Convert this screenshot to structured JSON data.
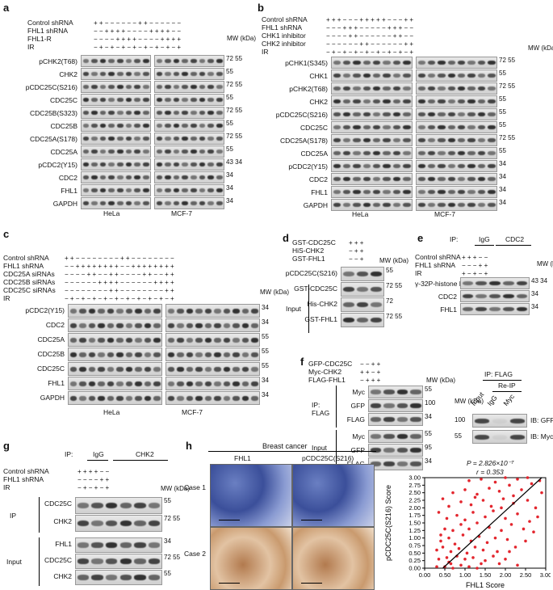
{
  "panels": {
    "a": {
      "letter": "a",
      "conditions": [
        {
          "label": "Control shRNA",
          "signs": "+ + − − − − − −   + + − − − − − −"
        },
        {
          "label": "FHL1 shRNA",
          "signs": "− − + + + + − −   − − + + + + − −"
        },
        {
          "label": "FHL1-R",
          "signs": "− − − − + + + +   − − − − + + + +"
        },
        {
          "label": "IR",
          "signs": "− + − + − + − +   − + − + − + − +"
        }
      ],
      "mw_header": "MW (kDa)",
      "blots": [
        {
          "label": "pCHK2(T68)",
          "mw": "72 55"
        },
        {
          "label": "CHK2",
          "mw": "55"
        },
        {
          "label": "pCDC25C(S216)",
          "mw": "72 55"
        },
        {
          "label": "CDC25C",
          "mw": "55"
        },
        {
          "label": "CDC25B(S323)",
          "mw": "72 55"
        },
        {
          "label": "CDC25B",
          "mw": "55"
        },
        {
          "label": "CDC25A(S178)",
          "mw": "72 55"
        },
        {
          "label": "CDC25A",
          "mw": "55"
        },
        {
          "label": "pCDC2(Y15)",
          "mw": "43 34"
        },
        {
          "label": "CDC2",
          "mw": "34"
        },
        {
          "label": "FHL1",
          "mw": "34"
        },
        {
          "label": "GAPDH",
          "mw": "34"
        }
      ],
      "cells": [
        "HeLa",
        "MCF-7"
      ]
    },
    "b": {
      "letter": "b",
      "conditions": [
        {
          "label": "Control shRNA",
          "signs": "+ + + − − − + +   + + + − − − + +"
        },
        {
          "label": "FHL1 shRNA",
          "signs": "− − − + + + − −   − − − + + + − −"
        },
        {
          "label": "CHK1 inhibitor",
          "signs": "− − − − + + − −   − − − − + + − −"
        },
        {
          "label": "CHK2 inhibitor",
          "signs": "− − − − − − + +   − − − − − − + +"
        },
        {
          "label": "IR",
          "signs": "− + − + − + − +   − + − + − + − +"
        }
      ],
      "mw_header": "MW (kDa)",
      "blots": [
        {
          "label": "pCHK1(S345)",
          "mw": "72 55"
        },
        {
          "label": "CHK1",
          "mw": "55"
        },
        {
          "label": "pCHK2(T68)",
          "mw": "72 55"
        },
        {
          "label": "CHK2",
          "mw": "55"
        },
        {
          "label": "pCDC25C(S216)",
          "mw": "55"
        },
        {
          "label": "CDC25C",
          "mw": "55"
        },
        {
          "label": "CDC25A(S178)",
          "mw": "72 55"
        },
        {
          "label": "CDC25A",
          "mw": "55"
        },
        {
          "label": "pCDC2(Y15)",
          "mw": "34"
        },
        {
          "label": "CDC2",
          "mw": "34"
        },
        {
          "label": "FHL1",
          "mw": "34"
        },
        {
          "label": "GAPDH",
          "mw": "34"
        }
      ],
      "cells": [
        "HeLa",
        "MCF-7"
      ]
    },
    "c": {
      "letter": "c",
      "conditions": [
        {
          "label": "Control shRNA",
          "signs": "+ + − − − − − − − −   + + − − − − − − − −"
        },
        {
          "label": "FHL1 shRNA",
          "signs": "− − + + + + + + + +   − − + + + + + + + +"
        },
        {
          "label": "CDC25A siRNAs",
          "signs": "− − − − + + − − + +   − − − − + + − − + +"
        },
        {
          "label": "CDC25B siRNAs",
          "signs": "− − − − − − + + + +   − − − − − − + + + +"
        },
        {
          "label": "CDC25C siRNAs",
          "signs": "− − − − − − − − + +   − − − − − − − − + +"
        },
        {
          "label": "IR",
          "signs": "− + − + − + − + − +   − + − + − + − + − +"
        }
      ],
      "mw_header": "MW (kDa)",
      "blots": [
        {
          "label": "pCDC2(Y15)",
          "mw": "34"
        },
        {
          "label": "CDC2",
          "mw": "34"
        },
        {
          "label": "CDC25A",
          "mw": "55"
        },
        {
          "label": "CDC25B",
          "mw": "55"
        },
        {
          "label": "CDC25C",
          "mw": "55"
        },
        {
          "label": "FHL1",
          "mw": "34"
        },
        {
          "label": "GAPDH",
          "mw": "34"
        }
      ],
      "cells": [
        "HeLa",
        "MCF-7"
      ]
    },
    "d": {
      "letter": "d",
      "conditions": [
        {
          "label": "GST-CDC25C",
          "signs": "+ + +"
        },
        {
          "label": "HiS-CHK2",
          "signs": "− + +"
        },
        {
          "label": "GST-FHL1",
          "signs": "− − +"
        }
      ],
      "mw_header": "MW (kDa)",
      "blots": [
        {
          "label": "pCDC25C(S216)",
          "mw": "55"
        },
        {
          "label": "GST-CDC25C",
          "mw": "72 55"
        },
        {
          "label": "His-CHK2",
          "mw": "72"
        },
        {
          "label": "GST-FHL1",
          "mw": "72 55"
        }
      ],
      "group": "Input"
    },
    "e": {
      "letter": "e",
      "ip": "IP:",
      "ip_groups": [
        "IgG",
        "CDC2"
      ],
      "conditions": [
        {
          "label": "Control shRNA",
          "signs": "+ + + − −"
        },
        {
          "label": "FHL1 shRNA",
          "signs": "− − − + +"
        },
        {
          "label": "IR",
          "signs": "+ − + − +"
        }
      ],
      "mw_header": "MW (kDa)",
      "blots": [
        {
          "label": "γ-32P-histone H1",
          "mw": "43 34"
        },
        {
          "label": "CDC2",
          "mw": "34"
        },
        {
          "label": "FHL1",
          "mw": "34"
        }
      ]
    },
    "f": {
      "letter": "f",
      "conditions": [
        {
          "label": "GFP-CDC25C",
          "signs": "− − + +"
        },
        {
          "label": "Myc-CHK2",
          "signs": "+ + − +"
        },
        {
          "label": "FLAG-FHL1",
          "signs": "− + + +"
        }
      ],
      "mw_header": "MW (kDa)",
      "ip_label": "IP: FLAG",
      "input_label": "Input",
      "ip_blots": [
        {
          "label": "Myc",
          "mw": "55"
        },
        {
          "label": "GFP",
          "mw": "100"
        },
        {
          "label": "FLAG",
          "mw": "34"
        }
      ],
      "input_blots": [
        {
          "label": "Myc",
          "mw": "55"
        },
        {
          "label": "GFP",
          "mw": "95"
        },
        {
          "label": "FLAG",
          "mw": "34"
        }
      ],
      "reip": {
        "ip_label": "IP: FLAG",
        "reip_label": "Re-IP",
        "lanes": [
          "Input",
          "IgG",
          "Myc"
        ],
        "mw_header": "MW (kDa)",
        "rows": [
          {
            "mw": "100",
            "ib": "IB: GFP"
          },
          {
            "mw": "55",
            "ib": "IB: Myc"
          }
        ]
      }
    },
    "g": {
      "letter": "g",
      "ip": "IP:",
      "ip_groups": [
        "IgG",
        "CHK2"
      ],
      "conditions": [
        {
          "label": "Control shRNA",
          "signs": "+ + + + − −"
        },
        {
          "label": "FHL1 shRNA",
          "signs": "− − − − + +"
        },
        {
          "label": "IR",
          "signs": "− + − + − +"
        }
      ],
      "mw_header": "MW (kDa)",
      "ip_label": "IP",
      "input_label": "Input",
      "ip_blots": [
        {
          "label": "CDC25C",
          "mw": "55"
        },
        {
          "label": "CHK2",
          "mw": "72 55"
        }
      ],
      "input_blots": [
        {
          "label": "FHL1",
          "mw": "34"
        },
        {
          "label": "CDC25C",
          "mw": "72 55"
        },
        {
          "label": "CHK2",
          "mw": "55"
        }
      ]
    },
    "h": {
      "letter": "h",
      "title": "Breast cancer",
      "columns": [
        "FHL1",
        "pCDC25C(S216)"
      ],
      "cases": [
        "Case 1",
        "Case 2"
      ],
      "stat_p": "P = 2.826×10⁻⁷",
      "stat_r": "r = 0.353"
    }
  },
  "chart_data": {
    "type": "scatter",
    "title": "",
    "xlabel": "FHL1 Score",
    "ylabel": "pCDC25C(S216) Score",
    "xlim": [
      0,
      3.0
    ],
    "ylim": [
      0,
      3.0
    ],
    "xticks": [
      "0.00",
      "0.50",
      "1.00",
      "1.50",
      "2.00",
      "2.50",
      "3.00"
    ],
    "yticks": [
      "0.00",
      "0.25",
      "0.50",
      "0.75",
      "1.00",
      "1.25",
      "1.50",
      "1.75",
      "2.00",
      "2.25",
      "2.50",
      "2.75",
      "3.00"
    ],
    "point_color": "#e3262e",
    "fit_line": {
      "x": [
        0.45,
        2.9
      ],
      "y": [
        0.0,
        3.0
      ]
    },
    "points": [
      [
        0.3,
        0.05
      ],
      [
        0.5,
        0.05
      ],
      [
        0.7,
        0.0
      ],
      [
        0.9,
        0.1
      ],
      [
        1.1,
        0.05
      ],
      [
        1.3,
        0.0
      ],
      [
        0.35,
        0.3
      ],
      [
        0.55,
        0.35
      ],
      [
        0.6,
        0.2
      ],
      [
        0.8,
        0.4
      ],
      [
        1.0,
        0.3
      ],
      [
        1.2,
        0.35
      ],
      [
        1.5,
        0.25
      ],
      [
        1.7,
        0.4
      ],
      [
        0.3,
        0.6
      ],
      [
        0.45,
        0.7
      ],
      [
        0.65,
        0.55
      ],
      [
        0.85,
        0.65
      ],
      [
        1.05,
        0.5
      ],
      [
        1.25,
        0.7
      ],
      [
        1.45,
        0.6
      ],
      [
        1.8,
        0.55
      ],
      [
        2.0,
        0.3
      ],
      [
        2.3,
        0.1
      ],
      [
        0.4,
        0.9
      ],
      [
        0.6,
        1.0
      ],
      [
        0.75,
        0.8
      ],
      [
        0.95,
        1.1
      ],
      [
        1.15,
        0.9
      ],
      [
        1.35,
        1.05
      ],
      [
        1.55,
        0.85
      ],
      [
        1.75,
        1.0
      ],
      [
        2.05,
        0.95
      ],
      [
        2.25,
        0.7
      ],
      [
        0.5,
        1.3
      ],
      [
        0.7,
        1.25
      ],
      [
        0.9,
        1.45
      ],
      [
        1.1,
        1.3
      ],
      [
        1.3,
        1.5
      ],
      [
        1.6,
        1.35
      ],
      [
        1.9,
        1.25
      ],
      [
        2.15,
        1.45
      ],
      [
        2.45,
        1.3
      ],
      [
        0.55,
        1.65
      ],
      [
        0.8,
        1.75
      ],
      [
        1.0,
        1.6
      ],
      [
        1.2,
        1.85
      ],
      [
        1.5,
        1.7
      ],
      [
        1.7,
        1.9
      ],
      [
        2.0,
        1.65
      ],
      [
        2.3,
        1.8
      ],
      [
        2.6,
        1.55
      ],
      [
        0.6,
        2.05
      ],
      [
        0.9,
        2.2
      ],
      [
        1.15,
        2.1
      ],
      [
        1.45,
        2.25
      ],
      [
        1.65,
        2.05
      ],
      [
        1.95,
        2.3
      ],
      [
        2.2,
        2.15
      ],
      [
        2.55,
        2.25
      ],
      [
        2.75,
        2.0
      ],
      [
        0.7,
        2.5
      ],
      [
        1.0,
        2.6
      ],
      [
        1.3,
        2.45
      ],
      [
        1.6,
        2.65
      ],
      [
        1.85,
        2.55
      ],
      [
        2.1,
        2.75
      ],
      [
        2.4,
        2.6
      ],
      [
        2.65,
        2.8
      ],
      [
        2.9,
        2.5
      ],
      [
        1.1,
        2.9
      ],
      [
        1.4,
        2.95
      ],
      [
        1.75,
        2.85
      ],
      [
        2.0,
        3.0
      ],
      [
        2.3,
        2.95
      ],
      [
        2.55,
        3.0
      ],
      [
        2.85,
        2.9
      ],
      [
        0.4,
        1.1
      ],
      [
        0.65,
        0.15
      ],
      [
        1.4,
        0.15
      ],
      [
        1.85,
        0.15
      ],
      [
        2.1,
        0.55
      ],
      [
        2.5,
        0.9
      ],
      [
        2.7,
        1.2
      ],
      [
        2.8,
        1.7
      ],
      [
        0.45,
        2.3
      ],
      [
        0.35,
        1.85
      ],
      [
        1.25,
        2.35
      ],
      [
        1.9,
        2.0
      ],
      [
        2.2,
        2.4
      ]
    ]
  }
}
